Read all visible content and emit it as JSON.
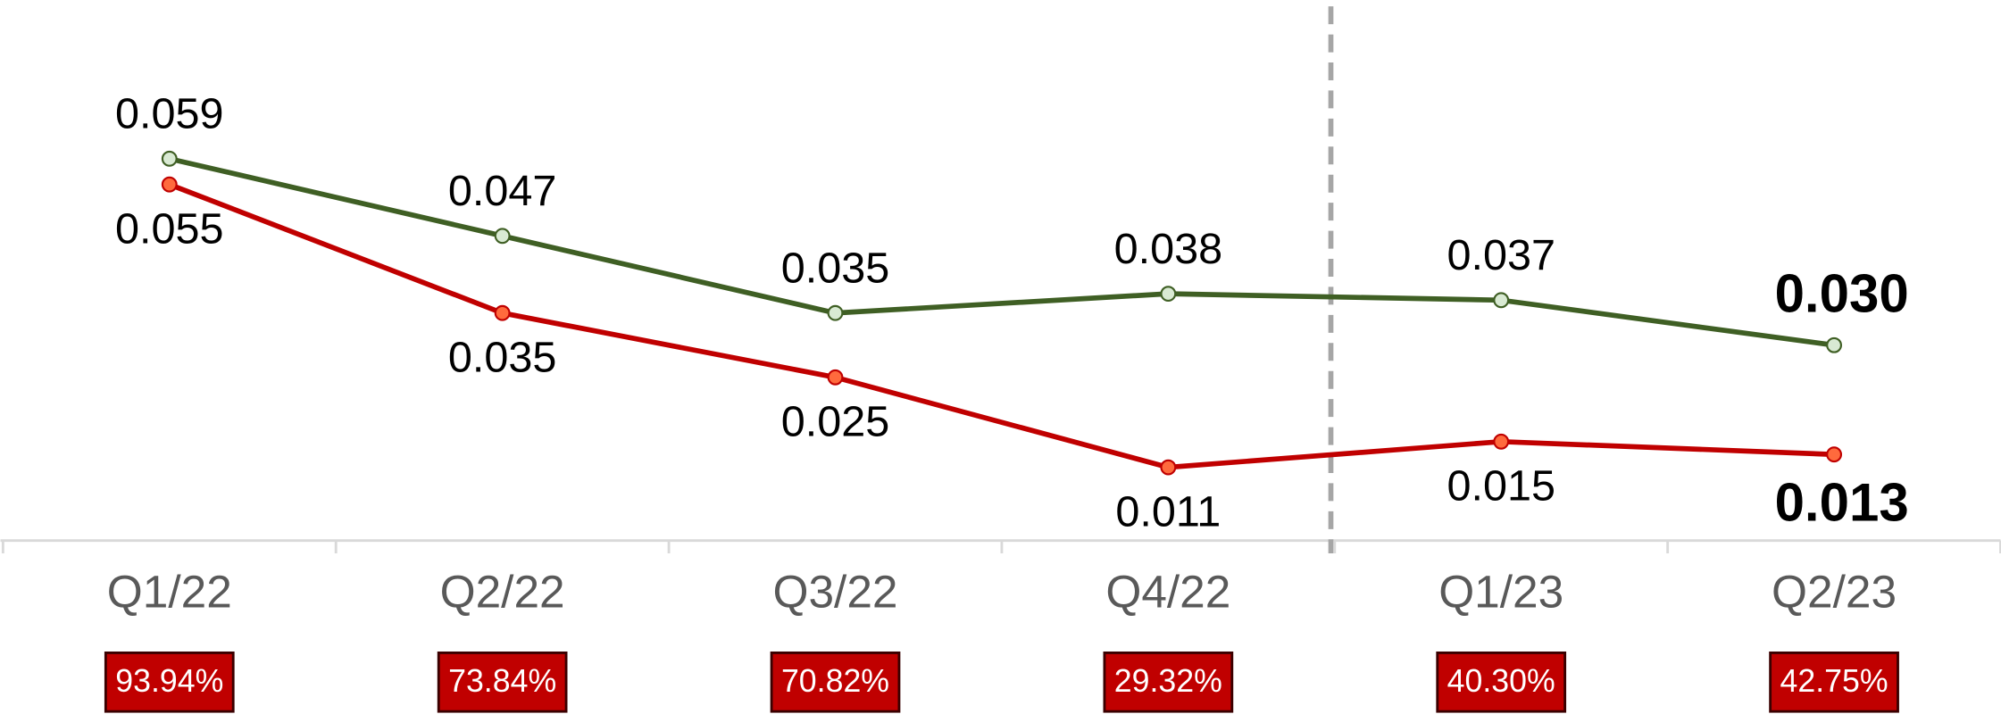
{
  "chart_data": {
    "type": "line",
    "categories": [
      "Q1/22",
      "Q2/22",
      "Q3/22",
      "Q4/22",
      "Q1/23",
      "Q2/23"
    ],
    "series": [
      {
        "color": "#3f5f24",
        "marker_fill": "#d9ead3",
        "values": [
          0.059,
          0.047,
          0.035,
          0.038,
          0.037,
          0.03
        ],
        "value_labels": [
          "0.059",
          "0.047",
          "0.035",
          "0.038",
          "0.037",
          "0.030"
        ]
      },
      {
        "color": "#c00000",
        "marker_fill": "#ff6a3d",
        "values": [
          0.055,
          0.035,
          0.025,
          0.011,
          0.015,
          0.013
        ],
        "value_labels": [
          "0.055",
          "0.035",
          "0.025",
          "0.011",
          "0.015",
          "0.013"
        ]
      }
    ],
    "ylim": [
      0,
      0.08
    ],
    "annotations": [
      "93.94%",
      "73.84%",
      "70.82%",
      "29.32%",
      "40.30%",
      "42.75%"
    ],
    "annotation_color": "#c00000"
  }
}
